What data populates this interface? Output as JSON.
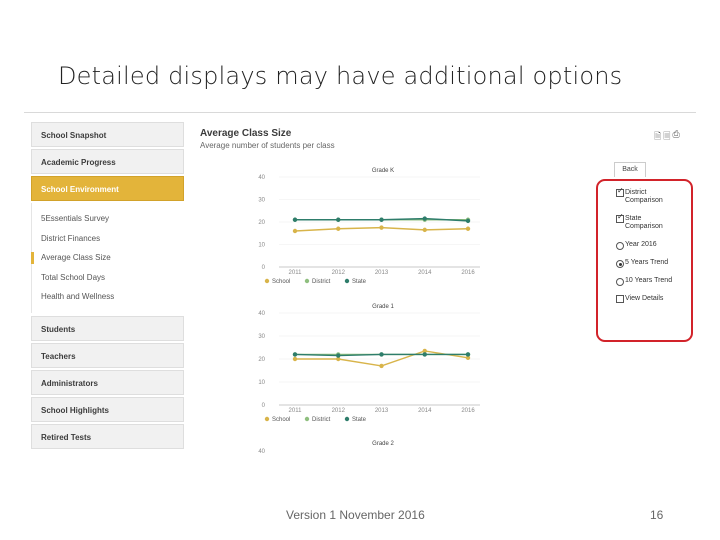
{
  "slide": {
    "title": "Detailed displays may have additional options",
    "footer_version": "Version 1   November 2016",
    "page_number": "16"
  },
  "sidebar": {
    "items_top": [
      {
        "label": "School Snapshot"
      },
      {
        "label": "Academic Progress"
      },
      {
        "label": "School Environment"
      }
    ],
    "sub_items": [
      {
        "label": "5Essentials Survey"
      },
      {
        "label": "District Finances"
      },
      {
        "label": "Average Class Size"
      },
      {
        "label": "Total School Days"
      },
      {
        "label": "Health and Wellness"
      }
    ],
    "items_bottom": [
      {
        "label": "Students"
      },
      {
        "label": "Teachers"
      },
      {
        "label": "Administrators"
      },
      {
        "label": "School Highlights"
      },
      {
        "label": "Retired Tests"
      }
    ]
  },
  "main": {
    "title": "Average Class Size",
    "subtitle": "Average number of students per class"
  },
  "options": {
    "back_label": "Back",
    "items": [
      {
        "type": "checkbox",
        "checked": true,
        "label_lines": [
          "District",
          "Comparison"
        ]
      },
      {
        "type": "checkbox",
        "checked": true,
        "label_lines": [
          "State",
          "Comparison"
        ]
      },
      {
        "type": "radio",
        "checked": false,
        "label_lines": [
          "Year 2016"
        ]
      },
      {
        "type": "radio",
        "checked": true,
        "label_lines": [
          "5 Years Trend"
        ]
      },
      {
        "type": "radio",
        "checked": false,
        "label_lines": [
          "10 Years Trend"
        ]
      },
      {
        "type": "checkbox",
        "checked": false,
        "label_lines": [
          "View Details"
        ]
      }
    ]
  },
  "colors": {
    "school": "#d8b44a",
    "district": "#8fbf7f",
    "state": "#2e7d6b",
    "accent": "#e3b43a",
    "highlight_border": "#d2232a"
  },
  "chart_data": [
    {
      "type": "line",
      "title": "Grade K",
      "x": [
        "2011",
        "2012",
        "2013",
        "2014",
        "2016"
      ],
      "ylim": [
        0,
        40
      ],
      "yticks": [
        "0",
        "10",
        "20",
        "30",
        "40"
      ],
      "series": [
        {
          "name": "School",
          "values": [
            16,
            17,
            17.5,
            16.5,
            17
          ]
        },
        {
          "name": "District",
          "values": [
            21,
            21,
            21,
            21,
            21
          ]
        },
        {
          "name": "State",
          "values": [
            21,
            21,
            21,
            21.5,
            20.5
          ]
        }
      ],
      "legend": "bottom-left"
    },
    {
      "type": "line",
      "title": "Grade 1",
      "x": [
        "2011",
        "2012",
        "2013",
        "2014",
        "2016"
      ],
      "ylim": [
        0,
        40
      ],
      "yticks": [
        "0",
        "10",
        "20",
        "30",
        "40"
      ],
      "series": [
        {
          "name": "School",
          "values": [
            20,
            20,
            17,
            23.5,
            20.5
          ]
        },
        {
          "name": "District",
          "values": [
            22,
            22,
            22,
            22,
            22
          ]
        },
        {
          "name": "State",
          "values": [
            22,
            21.5,
            22,
            22,
            22
          ]
        }
      ],
      "legend": "bottom-left"
    },
    {
      "type": "line",
      "title": "Grade 2",
      "x": [],
      "ylim": [
        0,
        40
      ],
      "yticks": [
        "40"
      ],
      "series": []
    }
  ]
}
